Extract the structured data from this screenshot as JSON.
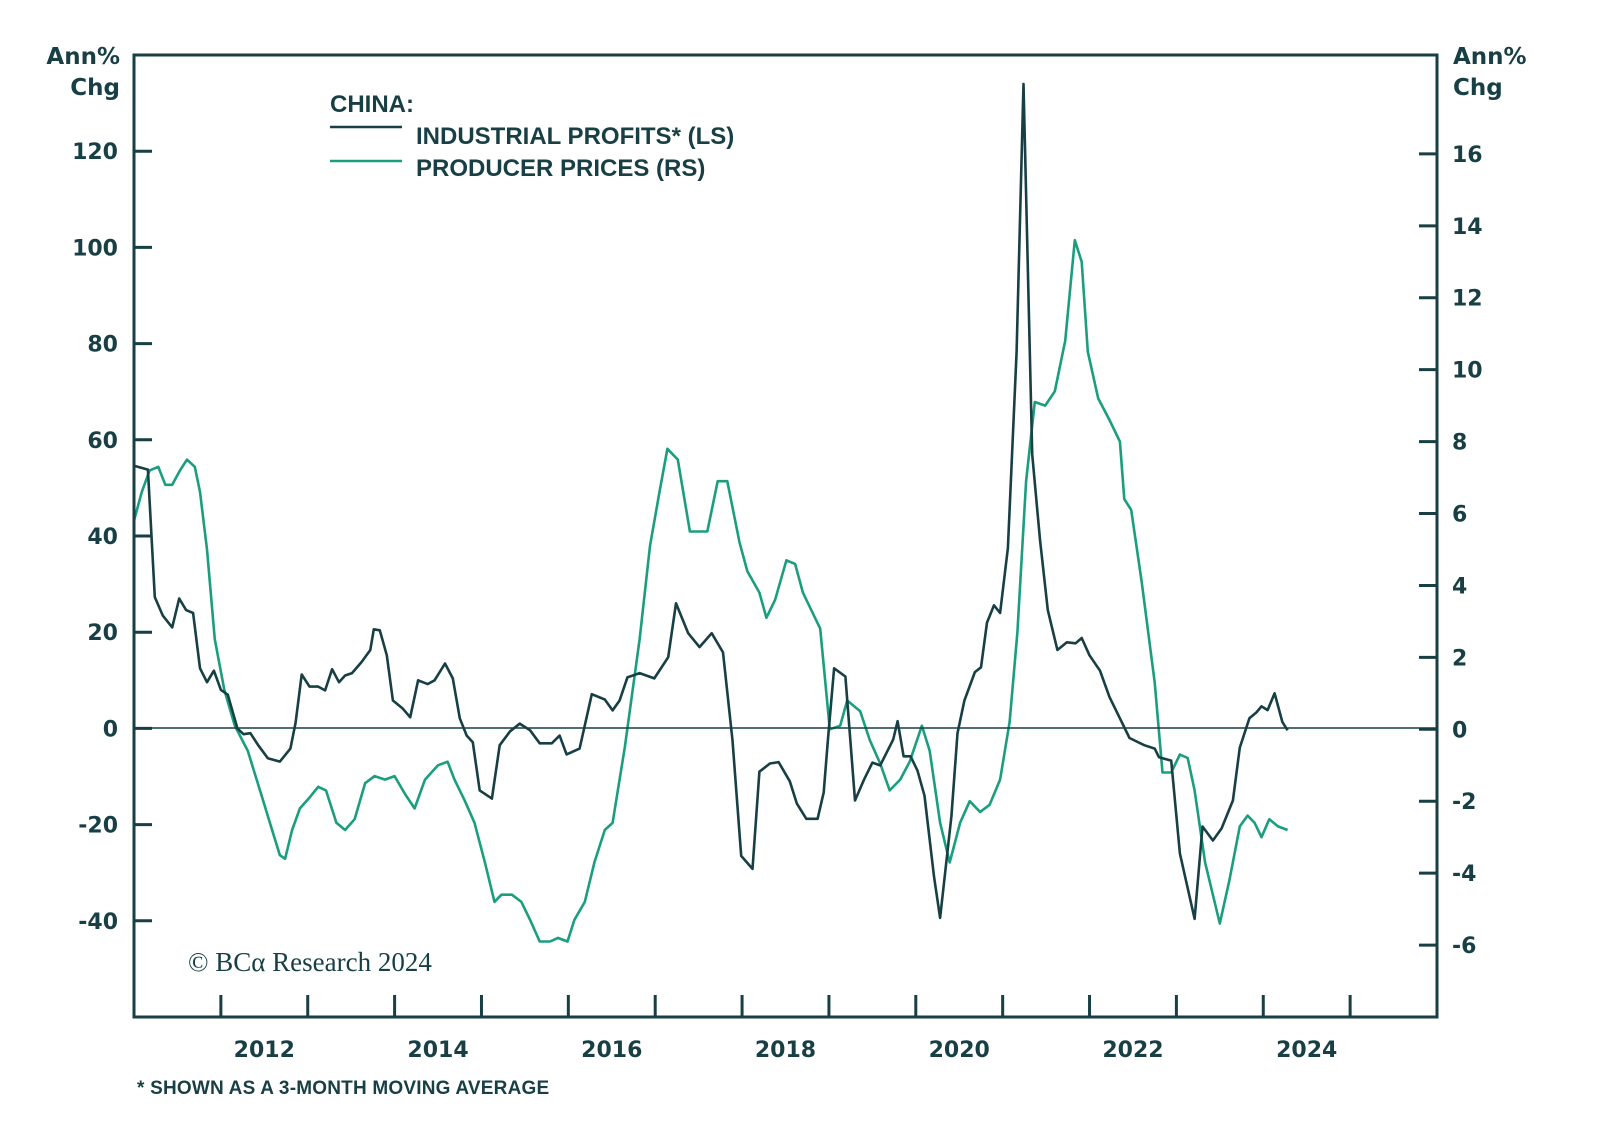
{
  "chart_data": {
    "type": "line",
    "title": "CHINA:",
    "left_axis": {
      "label_line1": "Ann%",
      "label_line2": "Chg",
      "ylim": [
        -60,
        140
      ],
      "ticks": [
        -40,
        -20,
        0,
        20,
        40,
        60,
        80,
        100,
        120
      ]
    },
    "right_axis": {
      "label_line1": "Ann%",
      "label_line2": "Chg",
      "ylim": [
        -8,
        18.75
      ],
      "ticks": [
        -6,
        -4,
        -2,
        0,
        2,
        4,
        6,
        8,
        10,
        12,
        14,
        16
      ]
    },
    "x_axis": {
      "xlim": [
        2011,
        2026
      ],
      "tick_labels": [
        "2012",
        "2014",
        "2016",
        "2018",
        "2020",
        "2022",
        "2024"
      ],
      "year_ticks": [
        2012,
        2013,
        2014,
        2015,
        2016,
        2017,
        2018,
        2019,
        2020,
        2021,
        2022,
        2023,
        2024,
        2025
      ]
    },
    "zero_line": true,
    "grid": false,
    "legend_position": "top-left",
    "colors": {
      "profits": "#173f44",
      "prices": "#1a9e7e",
      "axis": "#173f44"
    },
    "series": [
      {
        "name": "INDUSTRIAL PROFITS* (LS)",
        "axis": "left",
        "points": [
          [
            2011.0,
            54.6
          ],
          [
            2011.16,
            53.8
          ],
          [
            2011.24,
            27.3
          ],
          [
            2011.33,
            23.5
          ],
          [
            2011.44,
            21
          ],
          [
            2011.52,
            27
          ],
          [
            2011.6,
            24.6
          ],
          [
            2011.68,
            24
          ],
          [
            2011.76,
            12.5
          ],
          [
            2011.84,
            9.6
          ],
          [
            2011.92,
            12
          ],
          [
            2012.0,
            8
          ],
          [
            2012.08,
            7
          ],
          [
            2012.19,
            0
          ],
          [
            2012.26,
            -1.2
          ],
          [
            2012.34,
            -1
          ],
          [
            2012.43,
            -3.5
          ],
          [
            2012.54,
            -6.2
          ],
          [
            2012.68,
            -6.9
          ],
          [
            2012.8,
            -4.2
          ],
          [
            2012.86,
            1.2
          ],
          [
            2012.93,
            11.2
          ],
          [
            2013.02,
            8.7
          ],
          [
            2013.12,
            8.7
          ],
          [
            2013.2,
            7.9
          ],
          [
            2013.28,
            12.3
          ],
          [
            2013.36,
            9.6
          ],
          [
            2013.43,
            11
          ],
          [
            2013.51,
            11.5
          ],
          [
            2013.62,
            13.8
          ],
          [
            2013.72,
            16.3
          ],
          [
            2013.76,
            20.6
          ],
          [
            2013.83,
            20.4
          ],
          [
            2013.91,
            15.2
          ],
          [
            2013.98,
            5.8
          ],
          [
            2014.09,
            4.2
          ],
          [
            2014.18,
            2.3
          ],
          [
            2014.27,
            10
          ],
          [
            2014.38,
            9.2
          ],
          [
            2014.46,
            10
          ],
          [
            2014.58,
            13.5
          ],
          [
            2014.67,
            10.4
          ],
          [
            2014.75,
            2.1
          ],
          [
            2014.83,
            -1.5
          ],
          [
            2014.9,
            -2.9
          ],
          [
            2014.98,
            -12.9
          ],
          [
            2015.12,
            -14.6
          ],
          [
            2015.21,
            -3.5
          ],
          [
            2015.33,
            -0.6
          ],
          [
            2015.44,
            1
          ],
          [
            2015.56,
            -0.4
          ],
          [
            2015.67,
            -3.1
          ],
          [
            2015.81,
            -3.1
          ],
          [
            2015.9,
            -1.5
          ],
          [
            2015.98,
            -5.4
          ],
          [
            2016.13,
            -4.2
          ],
          [
            2016.27,
            7.1
          ],
          [
            2016.42,
            6
          ],
          [
            2016.51,
            3.75
          ],
          [
            2016.59,
            5.8
          ],
          [
            2016.68,
            10.6
          ],
          [
            2016.82,
            11.5
          ],
          [
            2016.99,
            10.4
          ],
          [
            2017.15,
            14.8
          ],
          [
            2017.24,
            26
          ],
          [
            2017.38,
            19.8
          ],
          [
            2017.51,
            16.9
          ],
          [
            2017.65,
            19.8
          ],
          [
            2017.78,
            15.8
          ],
          [
            2017.89,
            -2.5
          ],
          [
            2017.99,
            -26.5
          ],
          [
            2018.12,
            -29.2
          ],
          [
            2018.2,
            -9
          ],
          [
            2018.32,
            -7.3
          ],
          [
            2018.42,
            -7
          ],
          [
            2018.55,
            -11
          ],
          [
            2018.63,
            -15.6
          ],
          [
            2018.74,
            -18.8
          ],
          [
            2018.87,
            -18.8
          ],
          [
            2018.94,
            -13.3
          ],
          [
            2018.99,
            -1.9
          ],
          [
            2019.06,
            12.5
          ],
          [
            2019.19,
            10.8
          ],
          [
            2019.3,
            -15
          ],
          [
            2019.4,
            -10.8
          ],
          [
            2019.5,
            -7.1
          ],
          [
            2019.59,
            -7.7
          ],
          [
            2019.74,
            -2.3
          ],
          [
            2019.79,
            1.5
          ],
          [
            2019.86,
            -5.8
          ],
          [
            2019.94,
            -5.8
          ],
          [
            2020.02,
            -8.8
          ],
          [
            2020.1,
            -14
          ],
          [
            2020.21,
            -30.8
          ],
          [
            2020.28,
            -39.4
          ],
          [
            2020.41,
            -18.3
          ],
          [
            2020.48,
            -1
          ],
          [
            2020.56,
            5.8
          ],
          [
            2020.68,
            11.7
          ],
          [
            2020.75,
            12.7
          ],
          [
            2020.82,
            22
          ],
          [
            2020.9,
            25.6
          ],
          [
            2020.97,
            24
          ],
          [
            2021.06,
            37.5
          ],
          [
            2021.16,
            78.3
          ],
          [
            2021.24,
            134
          ],
          [
            2021.34,
            57
          ],
          [
            2021.43,
            39.2
          ],
          [
            2021.52,
            24.6
          ],
          [
            2021.63,
            16.3
          ],
          [
            2021.74,
            17.9
          ],
          [
            2021.84,
            17.7
          ],
          [
            2021.91,
            18.8
          ],
          [
            2022.0,
            15.2
          ],
          [
            2022.12,
            12
          ],
          [
            2022.23,
            6.5
          ],
          [
            2022.35,
            2.1
          ],
          [
            2022.46,
            -2
          ],
          [
            2022.63,
            -3.5
          ],
          [
            2022.75,
            -4.2
          ],
          [
            2022.8,
            -6
          ],
          [
            2022.94,
            -6.7
          ],
          [
            2023.04,
            -26
          ],
          [
            2023.21,
            -39.6
          ],
          [
            2023.3,
            -20.4
          ],
          [
            2023.42,
            -23.3
          ],
          [
            2023.52,
            -20.8
          ],
          [
            2023.65,
            -15
          ],
          [
            2023.73,
            -4
          ],
          [
            2023.84,
            2.1
          ],
          [
            2023.92,
            3.3
          ],
          [
            2023.98,
            4.6
          ],
          [
            2024.05,
            3.8
          ],
          [
            2024.13,
            7.3
          ],
          [
            2024.22,
            1.3
          ],
          [
            2024.28,
            -0.4
          ]
        ]
      },
      {
        "name": "PRODUCER PRICES (RS)",
        "axis": "right",
        "points": [
          [
            2011.0,
            5.8
          ],
          [
            2011.09,
            6.6
          ],
          [
            2011.18,
            7.2
          ],
          [
            2011.28,
            7.3
          ],
          [
            2011.36,
            6.8
          ],
          [
            2011.44,
            6.8
          ],
          [
            2011.53,
            7.2
          ],
          [
            2011.61,
            7.5
          ],
          [
            2011.7,
            7.3
          ],
          [
            2011.76,
            6.6
          ],
          [
            2011.84,
            5
          ],
          [
            2011.93,
            2.5
          ],
          [
            2012.04,
            1.1
          ],
          [
            2012.16,
            0.1
          ],
          [
            2012.31,
            -0.6
          ],
          [
            2012.45,
            -1.7
          ],
          [
            2012.59,
            -2.8
          ],
          [
            2012.68,
            -3.5
          ],
          [
            2012.74,
            -3.6
          ],
          [
            2012.82,
            -2.8
          ],
          [
            2012.91,
            -2.2
          ],
          [
            2013.02,
            -1.9
          ],
          [
            2013.12,
            -1.6
          ],
          [
            2013.21,
            -1.7
          ],
          [
            2013.33,
            -2.6
          ],
          [
            2013.43,
            -2.8
          ],
          [
            2013.54,
            -2.5
          ],
          [
            2013.66,
            -1.5
          ],
          [
            2013.77,
            -1.3
          ],
          [
            2013.89,
            -1.4
          ],
          [
            2014.0,
            -1.3
          ],
          [
            2014.12,
            -1.8
          ],
          [
            2014.23,
            -2.2
          ],
          [
            2014.35,
            -1.4
          ],
          [
            2014.5,
            -1
          ],
          [
            2014.61,
            -0.9
          ],
          [
            2014.69,
            -1.4
          ],
          [
            2014.81,
            -2
          ],
          [
            2014.92,
            -2.6
          ],
          [
            2015.04,
            -3.7
          ],
          [
            2015.15,
            -4.8
          ],
          [
            2015.23,
            -4.6
          ],
          [
            2015.35,
            -4.6
          ],
          [
            2015.46,
            -4.8
          ],
          [
            2015.56,
            -5.3
          ],
          [
            2015.67,
            -5.9
          ],
          [
            2015.79,
            -5.9
          ],
          [
            2015.88,
            -5.8
          ],
          [
            2015.99,
            -5.9
          ],
          [
            2016.07,
            -5.3
          ],
          [
            2016.19,
            -4.8
          ],
          [
            2016.3,
            -3.7
          ],
          [
            2016.42,
            -2.8
          ],
          [
            2016.51,
            -2.6
          ],
          [
            2016.65,
            -0.5
          ],
          [
            2016.82,
            2.5
          ],
          [
            2016.94,
            5.1
          ],
          [
            2017.05,
            6.6
          ],
          [
            2017.14,
            7.8
          ],
          [
            2017.26,
            7.5
          ],
          [
            2017.4,
            5.5
          ],
          [
            2017.51,
            5.5
          ],
          [
            2017.6,
            5.5
          ],
          [
            2017.72,
            6.9
          ],
          [
            2017.83,
            6.9
          ],
          [
            2017.97,
            5.2
          ],
          [
            2018.06,
            4.4
          ],
          [
            2018.2,
            3.8
          ],
          [
            2018.28,
            3.1
          ],
          [
            2018.38,
            3.6
          ],
          [
            2018.51,
            4.7
          ],
          [
            2018.61,
            4.6
          ],
          [
            2018.7,
            3.8
          ],
          [
            2018.78,
            3.4
          ],
          [
            2018.9,
            2.8
          ],
          [
            2019.01,
            0
          ],
          [
            2019.13,
            0.1
          ],
          [
            2019.21,
            0.8
          ],
          [
            2019.36,
            0.5
          ],
          [
            2019.47,
            -0.3
          ],
          [
            2019.59,
            -0.95
          ],
          [
            2019.7,
            -1.7
          ],
          [
            2019.82,
            -1.4
          ],
          [
            2019.93,
            -0.9
          ],
          [
            2020.07,
            0.1
          ],
          [
            2020.16,
            -0.6
          ],
          [
            2020.28,
            -2.6
          ],
          [
            2020.39,
            -3.7
          ],
          [
            2020.51,
            -2.6
          ],
          [
            2020.62,
            -2
          ],
          [
            2020.74,
            -2.3
          ],
          [
            2020.85,
            -2.1
          ],
          [
            2020.97,
            -1.4
          ],
          [
            2021.08,
            0.2
          ],
          [
            2021.17,
            2.7
          ],
          [
            2021.27,
            6.9
          ],
          [
            2021.37,
            9.1
          ],
          [
            2021.49,
            9
          ],
          [
            2021.6,
            9.4
          ],
          [
            2021.72,
            10.8
          ],
          [
            2021.83,
            13.6
          ],
          [
            2021.91,
            13
          ],
          [
            2021.98,
            10.5
          ],
          [
            2022.1,
            9.2
          ],
          [
            2022.23,
            8.6
          ],
          [
            2022.35,
            8
          ],
          [
            2022.4,
            6.4
          ],
          [
            2022.48,
            6.1
          ],
          [
            2022.6,
            4.1
          ],
          [
            2022.75,
            1.3
          ],
          [
            2022.84,
            -1.2
          ],
          [
            2022.94,
            -1.2
          ],
          [
            2023.04,
            -0.7
          ],
          [
            2023.13,
            -0.8
          ],
          [
            2023.21,
            -1.7
          ],
          [
            2023.33,
            -3.7
          ],
          [
            2023.5,
            -5.4
          ],
          [
            2023.61,
            -4.2
          ],
          [
            2023.73,
            -2.7
          ],
          [
            2023.82,
            -2.4
          ],
          [
            2023.9,
            -2.6
          ],
          [
            2023.98,
            -3
          ],
          [
            2024.07,
            -2.5
          ],
          [
            2024.17,
            -2.7
          ],
          [
            2024.28,
            -2.8
          ]
        ]
      }
    ],
    "annotations": {
      "copyright": "© BCα Research 2024",
      "footnote": "* SHOWN AS A 3-MONTH MOVING AVERAGE"
    }
  }
}
